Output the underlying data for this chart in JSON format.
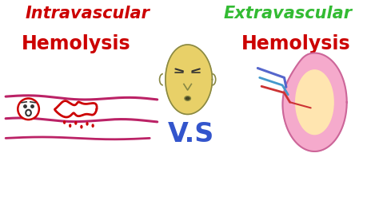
{
  "background_color": "#ffffff",
  "title_left_line1": "Intravascular",
  "title_left_line2": "Hemolysis",
  "title_right_line1": "Extravascular",
  "title_right_line2": "Hemolysis",
  "vs_text": "V.S",
  "title_left_color": "#cc0000",
  "title_right_line1_color": "#33bb33",
  "title_right_line2_color": "#cc0000",
  "vs_color": "#3355cc",
  "vessel_color": "#bb2266",
  "rbc_color": "#cc0000",
  "spleen_color": "#f5aacc",
  "spleen_edge_color": "#cc6699",
  "spleen_inner_color": "#ffe5b0",
  "face_color": "#e8d068",
  "face_edge_color": "#888844",
  "figsize": [
    4.74,
    2.66
  ],
  "dpi": 100
}
